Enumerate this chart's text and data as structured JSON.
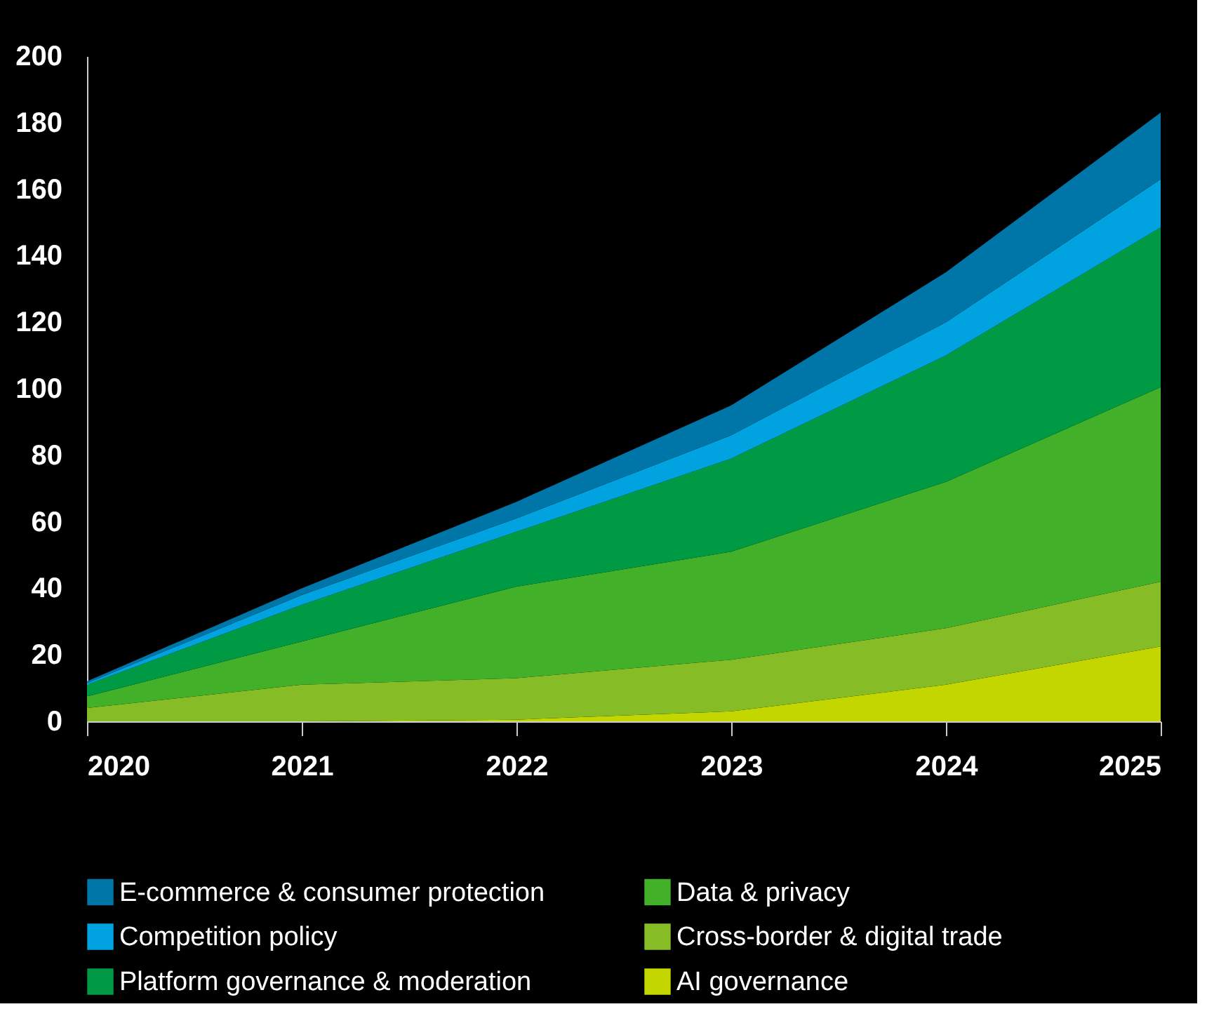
{
  "chart_data": {
    "type": "area",
    "stacked": true,
    "categories": [
      "2020",
      "2021",
      "2022",
      "2023",
      "2024",
      "2025"
    ],
    "ylim": [
      0,
      200
    ],
    "yticks": [
      0,
      20,
      40,
      60,
      80,
      100,
      120,
      140,
      160,
      180,
      200
    ],
    "grid": false,
    "legend": "bottom",
    "series": [
      {
        "name": "AI governance",
        "color": "#c4d600",
        "values": [
          0,
          0,
          0.5,
          3,
          11,
          22.5
        ]
      },
      {
        "name": "Cross-border & digital trade",
        "color": "#86bc25",
        "values": [
          4,
          11,
          12.5,
          15.5,
          17,
          19.5
        ]
      },
      {
        "name": "Data & privacy",
        "color": "#43b02a",
        "values": [
          3.5,
          13,
          27.5,
          32.5,
          44,
          58.5
        ]
      },
      {
        "name": "Platform governance & moderation",
        "color": "#009a44",
        "values": [
          3.5,
          11,
          16.5,
          28,
          38,
          48
        ]
      },
      {
        "name": "Competition policy",
        "color": "#00a3e0",
        "values": [
          0.5,
          3,
          4,
          7,
          10,
          14.5
        ]
      },
      {
        "name": "E-commerce & consumer protection",
        "color": "#0076a8",
        "values": [
          0.5,
          2,
          5,
          9,
          15,
          20
        ]
      }
    ]
  }
}
